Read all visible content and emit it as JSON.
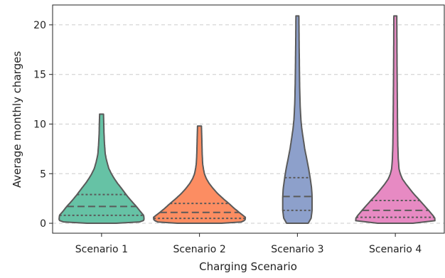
{
  "chart_data": {
    "type": "violin",
    "title": "",
    "xlabel": "Charging Scenario",
    "ylabel": "Average monthly charges",
    "ylim": [
      -1,
      22
    ],
    "yticks": [
      0,
      5,
      10,
      15,
      20
    ],
    "grid": "y-dashed",
    "inner": "quartile",
    "cut": 0,
    "colors": {
      "line": "#5a5a5a",
      "grid": "#cccccc",
      "axis": "#222222"
    },
    "categories": [
      "Scenario 1",
      "Scenario 2",
      "Scenario 3",
      "Scenario 4"
    ],
    "series": [
      {
        "color": "#66c2a5",
        "min": 0,
        "max": 11,
        "q1": 0.8,
        "median": 1.7,
        "q3": 2.9,
        "profile": [
          [
            0,
            0.3
          ],
          [
            0.1,
            0.76
          ],
          [
            0.3,
            0.87
          ],
          [
            0.8,
            0.86
          ],
          [
            1.2,
            0.79
          ],
          [
            1.7,
            0.71
          ],
          [
            2.3,
            0.6
          ],
          [
            2.9,
            0.5
          ],
          [
            3.5,
            0.41
          ],
          [
            4,
            0.33
          ],
          [
            4.5,
            0.26
          ],
          [
            5,
            0.2
          ],
          [
            5.5,
            0.15
          ],
          [
            6,
            0.12
          ],
          [
            6.5,
            0.095
          ],
          [
            7,
            0.075
          ],
          [
            8,
            0.06
          ],
          [
            9,
            0.05
          ],
          [
            10,
            0.045
          ],
          [
            11,
            0.04
          ]
        ]
      },
      {
        "color": "#fc8d62",
        "min": 0,
        "max": 9.8,
        "q1": 0.5,
        "median": 1.1,
        "q3": 2.0,
        "profile": [
          [
            0,
            0.45
          ],
          [
            0.1,
            0.84
          ],
          [
            0.3,
            0.93
          ],
          [
            0.6,
            0.94
          ],
          [
            1.1,
            0.81
          ],
          [
            1.5,
            0.71
          ],
          [
            2,
            0.6
          ],
          [
            2.5,
            0.48
          ],
          [
            3,
            0.37
          ],
          [
            3.5,
            0.28
          ],
          [
            4,
            0.2
          ],
          [
            4.5,
            0.14
          ],
          [
            5,
            0.1
          ],
          [
            5.5,
            0.08
          ],
          [
            6,
            0.065
          ],
          [
            7,
            0.055
          ],
          [
            8,
            0.05
          ],
          [
            9,
            0.045
          ],
          [
            9.8,
            0.04
          ]
        ]
      },
      {
        "color": "#8da0cb",
        "min": 0,
        "max": 20.9,
        "q1": 1.3,
        "median": 2.7,
        "q3": 4.6,
        "profile": [
          [
            0,
            0.22
          ],
          [
            0.5,
            0.28
          ],
          [
            1.3,
            0.3
          ],
          [
            2,
            0.3
          ],
          [
            2.7,
            0.3
          ],
          [
            3.5,
            0.29
          ],
          [
            4.6,
            0.26
          ],
          [
            5.5,
            0.23
          ],
          [
            6.5,
            0.19
          ],
          [
            7.5,
            0.15
          ],
          [
            8.5,
            0.12
          ],
          [
            9.5,
            0.09
          ],
          [
            10.5,
            0.07
          ],
          [
            12,
            0.055
          ],
          [
            14,
            0.045
          ],
          [
            16,
            0.04
          ],
          [
            18,
            0.035
          ],
          [
            20.9,
            0.03
          ]
        ]
      },
      {
        "color": "#e78ac3",
        "min": 0,
        "max": 20.9,
        "q1": 0.6,
        "median": 1.3,
        "q3": 2.3,
        "profile": [
          [
            0,
            0.36
          ],
          [
            0.1,
            0.76
          ],
          [
            0.3,
            0.82
          ],
          [
            0.6,
            0.8
          ],
          [
            1.3,
            0.68
          ],
          [
            2.3,
            0.5
          ],
          [
            3,
            0.37
          ],
          [
            3.5,
            0.29
          ],
          [
            4,
            0.21
          ],
          [
            4.5,
            0.14
          ],
          [
            5,
            0.1
          ],
          [
            5.5,
            0.075
          ],
          [
            6.5,
            0.06
          ],
          [
            8,
            0.05
          ],
          [
            10,
            0.045
          ],
          [
            13,
            0.04
          ],
          [
            16,
            0.035
          ],
          [
            20.9,
            0.03
          ]
        ]
      }
    ]
  }
}
